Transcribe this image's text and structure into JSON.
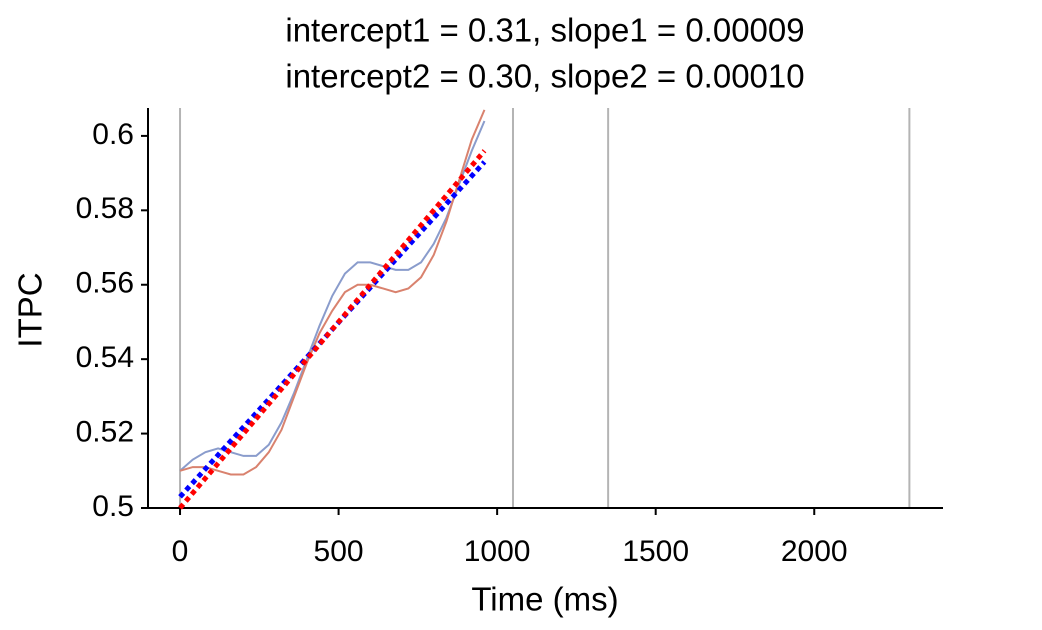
{
  "chart_data": {
    "type": "line",
    "title": [
      "intercept1 = 0.31, slope1 = 0.00009",
      "intercept2 = 0.30, slope2 = 0.00010"
    ],
    "xlabel": "Time (ms)",
    "ylabel": "ITPC",
    "xlim": [
      -101,
      2406
    ],
    "ylim": [
      0.5,
      0.6075
    ],
    "xticks": [
      0,
      500,
      1000,
      1500,
      2000
    ],
    "yticks": [
      0.5,
      0.52,
      0.54,
      0.56,
      0.58,
      0.6
    ],
    "vlines": [
      0,
      1050,
      1350,
      2300
    ],
    "vline_color": "#b4b4b4",
    "series": [
      {
        "color": "#8a9ccc",
        "style": "solid",
        "x": [
          0,
          40,
          80,
          120,
          160,
          200,
          240,
          280,
          320,
          360,
          400,
          440,
          480,
          520,
          560,
          600,
          640,
          680,
          720,
          760,
          800,
          840,
          880,
          920,
          960
        ],
        "values": [
          0.51,
          0.513,
          0.515,
          0.516,
          0.515,
          0.514,
          0.514,
          0.517,
          0.523,
          0.531,
          0.54,
          0.549,
          0.557,
          0.563,
          0.566,
          0.566,
          0.565,
          0.564,
          0.564,
          0.566,
          0.571,
          0.578,
          0.587,
          0.596,
          0.604
        ]
      },
      {
        "color": "#d9826e",
        "style": "solid",
        "x": [
          0,
          40,
          80,
          120,
          160,
          200,
          240,
          280,
          320,
          360,
          400,
          440,
          480,
          520,
          560,
          600,
          640,
          680,
          720,
          760,
          800,
          840,
          880,
          920,
          960
        ],
        "values": [
          0.51,
          0.511,
          0.511,
          0.51,
          0.509,
          0.509,
          0.511,
          0.515,
          0.521,
          0.53,
          0.539,
          0.547,
          0.553,
          0.558,
          0.56,
          0.56,
          0.559,
          0.558,
          0.559,
          0.562,
          0.568,
          0.577,
          0.588,
          0.599,
          0.607
        ]
      },
      {
        "color": "#0000ff",
        "style": "dotted",
        "x": [
          0,
          960
        ],
        "values": [
          0.503,
          0.593
        ]
      },
      {
        "color": "#ff0000",
        "style": "dotted",
        "x": [
          0,
          960
        ],
        "values": [
          0.5,
          0.596
        ]
      }
    ]
  }
}
